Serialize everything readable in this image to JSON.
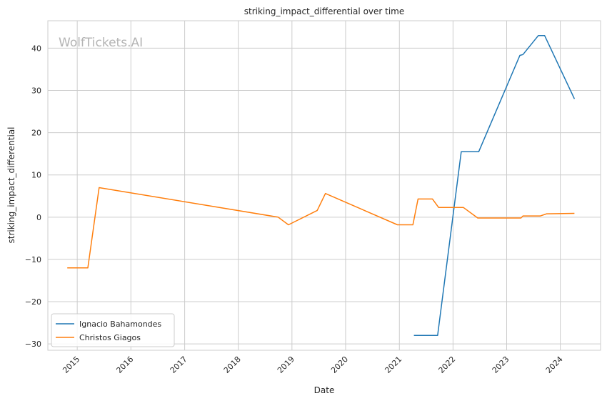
{
  "chart_data": {
    "type": "line",
    "title": "striking_impact_differential over time",
    "xlabel": "Date",
    "ylabel": "striking_impact_differential",
    "watermark": "WolfTickets.AI",
    "xlim": [
      "2014-06-15",
      "2024-10-01"
    ],
    "ylim": [
      -31.5,
      46.5
    ],
    "y_ticks": [
      -30,
      -20,
      -10,
      0,
      10,
      20,
      30,
      40
    ],
    "y_tick_labels": [
      "−30",
      "−20",
      "−10",
      "0",
      "10",
      "20",
      "30",
      "40"
    ],
    "x_ticks": [
      "2015-01-01",
      "2016-01-01",
      "2017-01-01",
      "2018-01-01",
      "2019-01-01",
      "2020-01-01",
      "2021-01-01",
      "2022-01-01",
      "2023-01-01",
      "2024-01-01"
    ],
    "x_tick_labels": [
      "2015",
      "2016",
      "2017",
      "2018",
      "2019",
      "2020",
      "2021",
      "2022",
      "2023",
      "2024"
    ],
    "grid": true,
    "legend_position": "lower-left",
    "series": [
      {
        "name": "Ignacio Bahamondes",
        "color": "#1f77b4",
        "points": [
          {
            "x": "2021-04-10",
            "y": -28
          },
          {
            "x": "2021-09-18",
            "y": -28
          },
          {
            "x": "2022-02-26",
            "y": 15.5
          },
          {
            "x": "2022-06-25",
            "y": 15.5
          },
          {
            "x": "2023-04-01",
            "y": 38.3
          },
          {
            "x": "2023-04-22",
            "y": 38.5
          },
          {
            "x": "2023-08-05",
            "y": 43
          },
          {
            "x": "2023-09-16",
            "y": 43
          },
          {
            "x": "2024-04-06",
            "y": 28
          }
        ]
      },
      {
        "name": "Christos Giagos",
        "color": "#ff7f0e",
        "points": [
          {
            "x": "2014-10-25",
            "y": -12
          },
          {
            "x": "2015-03-14",
            "y": -12
          },
          {
            "x": "2015-05-30",
            "y": 7
          },
          {
            "x": "2018-09-29",
            "y": 0
          },
          {
            "x": "2018-12-08",
            "y": -1.8
          },
          {
            "x": "2019-06-22",
            "y": 1.6
          },
          {
            "x": "2019-08-17",
            "y": 5.6
          },
          {
            "x": "2020-12-19",
            "y": -1.8
          },
          {
            "x": "2021-04-03",
            "y": -1.8
          },
          {
            "x": "2021-05-08",
            "y": 4.3
          },
          {
            "x": "2021-08-14",
            "y": 4.3
          },
          {
            "x": "2021-09-25",
            "y": 2.3
          },
          {
            "x": "2022-03-12",
            "y": 2.3
          },
          {
            "x": "2022-06-18",
            "y": -0.2
          },
          {
            "x": "2023-04-08",
            "y": -0.2
          },
          {
            "x": "2023-04-22",
            "y": 0.3
          },
          {
            "x": "2023-08-19",
            "y": 0.3
          },
          {
            "x": "2023-09-30",
            "y": 0.8
          },
          {
            "x": "2024-04-06",
            "y": 0.9
          }
        ]
      }
    ]
  }
}
